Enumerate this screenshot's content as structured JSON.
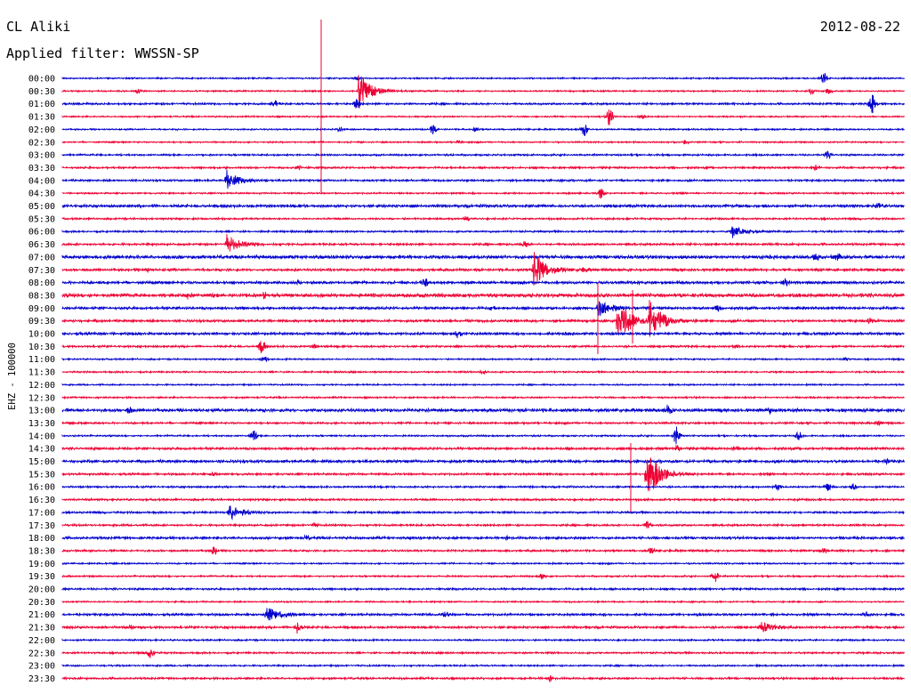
{
  "header": {
    "station": "CL Aliki",
    "filter": "Applied filter: WWSSN-SP",
    "date": "2012-08-22"
  },
  "colors": {
    "even_trace": "#0000cc",
    "odd_trace": "#ee0033",
    "axis": "#000000"
  },
  "chart_data": {
    "type": "line",
    "title": "CL Aliki",
    "subtitle": "Applied filter: WWSSN-SP",
    "ylabel": "EHZ - 100000",
    "xlabel": "",
    "grid": false,
    "categories": [
      "00:00",
      "00:30",
      "01:00",
      "01:30",
      "02:00",
      "02:30",
      "03:00",
      "03:30",
      "04:00",
      "04:30",
      "05:00",
      "05:30",
      "06:00",
      "06:30",
      "07:00",
      "07:30",
      "08:00",
      "08:30",
      "09:00",
      "09:30",
      "10:00",
      "10:30",
      "11:00",
      "11:30",
      "12:00",
      "12:30",
      "13:00",
      "13:30",
      "14:00",
      "14:30",
      "15:00",
      "15:30",
      "16:00",
      "16:30",
      "17:00",
      "17:30",
      "18:00",
      "18:30",
      "19:00",
      "19:30",
      "20:00",
      "20:30",
      "21:00",
      "21:30",
      "22:00",
      "22:30",
      "23:00",
      "23:30"
    ],
    "row_minutes": 30,
    "traces": [
      {
        "label": "00:00",
        "noise": 1,
        "events": [
          [
            0.904,
            7,
            "s"
          ],
          [
            0.35,
            2,
            "s"
          ]
        ]
      },
      {
        "label": "00:30",
        "noise": 1,
        "events": [
          [
            0.352,
            22,
            "q"
          ],
          [
            0.09,
            2,
            "s"
          ],
          [
            0.89,
            3,
            "s"
          ],
          [
            0.91,
            3,
            "s"
          ]
        ]
      },
      {
        "label": "01:00",
        "noise": 1.3,
        "events": [
          [
            0.252,
            4,
            "s"
          ],
          [
            0.962,
            12,
            "s"
          ],
          [
            0.35,
            6,
            "s"
          ]
        ]
      },
      {
        "label": "01:30",
        "noise": 1,
        "events": [
          [
            0.65,
            10,
            "s"
          ],
          [
            0.69,
            2,
            "s"
          ]
        ]
      },
      {
        "label": "02:00",
        "noise": 1,
        "events": [
          [
            0.44,
            5,
            "s"
          ],
          [
            0.62,
            7,
            "s"
          ],
          [
            0.33,
            2,
            "s"
          ],
          [
            0.49,
            2,
            "s"
          ]
        ]
      },
      {
        "label": "02:30",
        "noise": 1,
        "events": [
          [
            0.74,
            2,
            "s"
          ],
          [
            0.47,
            2,
            "s"
          ]
        ]
      },
      {
        "label": "03:00",
        "noise": 1.2,
        "events": [
          [
            0.91,
            4,
            "s"
          ]
        ]
      },
      {
        "label": "03:30",
        "noise": 1.3,
        "events": [
          [
            0.895,
            3,
            "s"
          ],
          [
            0.28,
            2,
            "s"
          ]
        ]
      },
      {
        "label": "04:00",
        "noise": 1.3,
        "events": [
          [
            0.195,
            12,
            "q"
          ]
        ]
      },
      {
        "label": "04:30",
        "noise": 1.1,
        "events": [
          [
            0.64,
            6,
            "s"
          ]
        ]
      },
      {
        "label": "05:00",
        "noise": 1.8,
        "events": [
          [
            0.97,
            3,
            "s"
          ]
        ]
      },
      {
        "label": "05:30",
        "noise": 1.2,
        "events": [
          [
            0.48,
            2,
            "s"
          ]
        ]
      },
      {
        "label": "06:00",
        "noise": 1.2,
        "events": [
          [
            0.795,
            7,
            "q"
          ]
        ]
      },
      {
        "label": "06:30",
        "noise": 1.4,
        "events": [
          [
            0.195,
            11,
            "q"
          ],
          [
            0.55,
            3,
            "s"
          ]
        ]
      },
      {
        "label": "07:00",
        "noise": 2.2,
        "events": [
          [
            0.92,
            4,
            "s"
          ],
          [
            0.895,
            3,
            "s"
          ]
        ]
      },
      {
        "label": "07:30",
        "noise": 1.6,
        "events": [
          [
            0.56,
            22,
            "q"
          ],
          [
            0.1,
            2,
            "s"
          ],
          [
            0.62,
            2,
            "s"
          ]
        ]
      },
      {
        "label": "08:00",
        "noise": 1.8,
        "events": [
          [
            0.43,
            5,
            "s"
          ],
          [
            0.86,
            4,
            "s"
          ],
          [
            0.28,
            2,
            "s"
          ]
        ]
      },
      {
        "label": "08:30",
        "noise": 2.4,
        "events": [
          [
            0.24,
            3,
            "s"
          ],
          [
            0.15,
            3,
            "s"
          ]
        ]
      },
      {
        "label": "09:00",
        "noise": 1.7,
        "events": [
          [
            0.637,
            10,
            "q"
          ],
          [
            0.51,
            2,
            "s"
          ],
          [
            0.78,
            3,
            "s"
          ]
        ]
      },
      {
        "label": "09:30",
        "noise": 1.6,
        "events": [
          [
            0.66,
            28,
            "q"
          ],
          [
            0.697,
            28,
            "q"
          ],
          [
            0.96,
            3,
            "s"
          ]
        ]
      },
      {
        "label": "10:00",
        "noise": 1.7,
        "events": [
          [
            0.47,
            5,
            "s"
          ],
          [
            0.6,
            2,
            "s"
          ]
        ]
      },
      {
        "label": "10:30",
        "noise": 1.3,
        "events": [
          [
            0.237,
            9,
            "s"
          ],
          [
            0.3,
            2,
            "s"
          ],
          [
            0.8,
            2,
            "s"
          ]
        ]
      },
      {
        "label": "11:00",
        "noise": 1,
        "events": [
          [
            0.24,
            3,
            "s"
          ],
          [
            0.93,
            2,
            "s"
          ]
        ]
      },
      {
        "label": "11:30",
        "noise": 1.1,
        "events": [
          [
            0.5,
            2,
            "s"
          ]
        ]
      },
      {
        "label": "12:00",
        "noise": 1,
        "events": []
      },
      {
        "label": "12:30",
        "noise": 1.1,
        "events": []
      },
      {
        "label": "13:00",
        "noise": 2,
        "events": [
          [
            0.72,
            5,
            "s"
          ],
          [
            0.84,
            3,
            "s"
          ],
          [
            0.08,
            3,
            "s"
          ]
        ]
      },
      {
        "label": "13:30",
        "noise": 1.3,
        "events": [
          [
            0.97,
            2,
            "s"
          ]
        ]
      },
      {
        "label": "14:00",
        "noise": 1.1,
        "events": [
          [
            0.73,
            11,
            "s"
          ],
          [
            0.875,
            4,
            "s"
          ],
          [
            0.227,
            6,
            "s"
          ]
        ]
      },
      {
        "label": "14:30",
        "noise": 1.6,
        "events": [
          [
            0.73,
            3,
            "s"
          ],
          [
            0.8,
            2,
            "s"
          ]
        ]
      },
      {
        "label": "15:00",
        "noise": 1.8,
        "events": [
          [
            0.98,
            2,
            "s"
          ]
        ]
      },
      {
        "label": "15:30",
        "noise": 1.4,
        "events": [
          [
            0.694,
            32,
            "q"
          ],
          [
            0.18,
            2,
            "s"
          ]
        ]
      },
      {
        "label": "16:00",
        "noise": 1.2,
        "events": [
          [
            0.85,
            4,
            "s"
          ],
          [
            0.91,
            4,
            "s"
          ],
          [
            0.94,
            3,
            "s"
          ]
        ]
      },
      {
        "label": "16:30",
        "noise": 1.3,
        "events": []
      },
      {
        "label": "17:00",
        "noise": 1.3,
        "events": [
          [
            0.198,
            9,
            "q"
          ]
        ]
      },
      {
        "label": "17:30",
        "noise": 1.3,
        "events": [
          [
            0.695,
            4,
            "s"
          ],
          [
            0.3,
            2,
            "s"
          ]
        ]
      },
      {
        "label": "18:00",
        "noise": 1.6,
        "events": [
          [
            0.53,
            2,
            "s"
          ],
          [
            0.29,
            2,
            "s"
          ]
        ]
      },
      {
        "label": "18:30",
        "noise": 1.3,
        "events": [
          [
            0.18,
            5,
            "s"
          ],
          [
            0.7,
            3,
            "s"
          ],
          [
            0.905,
            2,
            "s"
          ]
        ]
      },
      {
        "label": "19:00",
        "noise": 1,
        "events": []
      },
      {
        "label": "19:30",
        "noise": 1.1,
        "events": [
          [
            0.775,
            7,
            "s"
          ],
          [
            0.57,
            3,
            "s"
          ]
        ]
      },
      {
        "label": "20:00",
        "noise": 1.3,
        "events": []
      },
      {
        "label": "20:30",
        "noise": 1,
        "events": []
      },
      {
        "label": "21:00",
        "noise": 1.5,
        "events": [
          [
            0.243,
            11,
            "q"
          ],
          [
            0.455,
            3,
            "s"
          ],
          [
            0.955,
            3,
            "s"
          ]
        ]
      },
      {
        "label": "21:30",
        "noise": 1.5,
        "events": [
          [
            0.28,
            7,
            "s"
          ],
          [
            0.83,
            6,
            "q"
          ],
          [
            0.08,
            2,
            "s"
          ]
        ]
      },
      {
        "label": "22:00",
        "noise": 1.1,
        "events": []
      },
      {
        "label": "22:30",
        "noise": 1.2,
        "events": [
          [
            0.105,
            6,
            "s"
          ]
        ]
      },
      {
        "label": "23:00",
        "noise": 1.1,
        "events": []
      },
      {
        "label": "23:30",
        "noise": 1.3,
        "events": [
          [
            0.58,
            3,
            "s"
          ]
        ]
      }
    ]
  }
}
